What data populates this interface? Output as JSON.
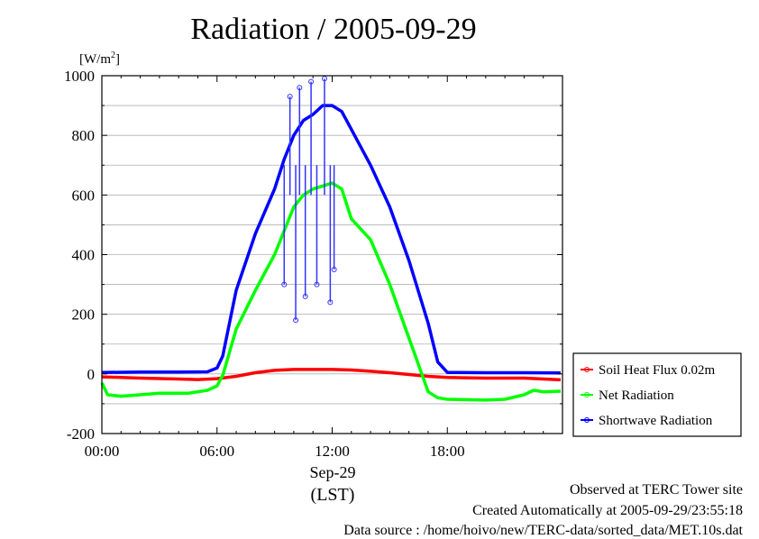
{
  "title": "Radiation / 2005-09-29",
  "chart_data": {
    "type": "line",
    "title": "Radiation / 2005-09-29",
    "ylabel": "[W/m²]",
    "ylabel_main": "[W/m",
    "ylabel_sup": "2",
    "ylabel_end": "]",
    "ylim": [
      -200,
      1000
    ],
    "xlim": [
      0,
      24
    ],
    "yticks": [
      -200,
      0,
      200,
      400,
      600,
      800,
      1000
    ],
    "xticks": [
      0,
      6,
      12,
      18
    ],
    "xticklabels": [
      "00:00",
      "06:00",
      "12:00",
      "18:00"
    ],
    "xdate": "Sep-29",
    "xunit": "(LST)",
    "grid": true,
    "legend_position": "right",
    "series": [
      {
        "name": "Soil Heat Flux 0.02m",
        "color": "#ff0000",
        "x": [
          0,
          2,
          4,
          5,
          6,
          7,
          8,
          9,
          10,
          11,
          12,
          13,
          14,
          15,
          16,
          17,
          18,
          20,
          22,
          23.9
        ],
        "y": [
          -10,
          -14,
          -17,
          -19,
          -16,
          -8,
          4,
          12,
          15,
          15,
          15,
          13,
          9,
          4,
          -2,
          -8,
          -12,
          -14,
          -14,
          -20
        ]
      },
      {
        "name": "Net Radiation",
        "color": "#00ff00",
        "x": [
          0,
          0.3,
          1,
          3,
          4.5,
          5.5,
          6,
          6.3,
          7,
          8,
          9,
          9.5,
          10,
          10.5,
          11,
          11.5,
          12,
          12.5,
          13,
          14,
          15,
          16,
          17,
          17.5,
          18,
          20,
          21,
          22,
          22.5,
          23,
          23.9
        ],
        "y": [
          -30,
          -70,
          -75,
          -65,
          -65,
          -55,
          -40,
          -5,
          150,
          280,
          400,
          480,
          560,
          600,
          620,
          630,
          640,
          620,
          520,
          450,
          300,
          120,
          -60,
          -80,
          -85,
          -88,
          -85,
          -70,
          -55,
          -60,
          -58
        ]
      },
      {
        "name": "Shortwave Radiation",
        "color": "#0000ff",
        "x": [
          0,
          2,
          4,
          5.5,
          6,
          6.3,
          7,
          8,
          9,
          9.5,
          10,
          10.5,
          11,
          11.5,
          12,
          12.5,
          13,
          14,
          15,
          16,
          17,
          17.5,
          18,
          20,
          22,
          23.9
        ],
        "y": [
          5,
          6,
          6,
          7,
          20,
          60,
          280,
          470,
          620,
          720,
          800,
          850,
          870,
          900,
          900,
          880,
          820,
          700,
          560,
          380,
          170,
          40,
          5,
          4,
          4,
          3
        ]
      }
    ],
    "scatter_spikes": [
      {
        "x": 9.8,
        "y": 930
      },
      {
        "x": 10.3,
        "y": 960
      },
      {
        "x": 10.6,
        "y": 260
      },
      {
        "x": 10.9,
        "y": 980
      },
      {
        "x": 11.2,
        "y": 300
      },
      {
        "x": 11.6,
        "y": 990
      },
      {
        "x": 11.9,
        "y": 240
      },
      {
        "x": 9.5,
        "y": 300
      },
      {
        "x": 10.1,
        "y": 180
      },
      {
        "x": 12.1,
        "y": 350
      }
    ]
  },
  "footer": {
    "line1": "Observed at TERC Tower site",
    "line2": "Created Automatically at 2005-09-29/23:55:18",
    "line3": "Data source : /home/hoivo/new/TERC-data/sorted_data/MET.10s.dat"
  }
}
